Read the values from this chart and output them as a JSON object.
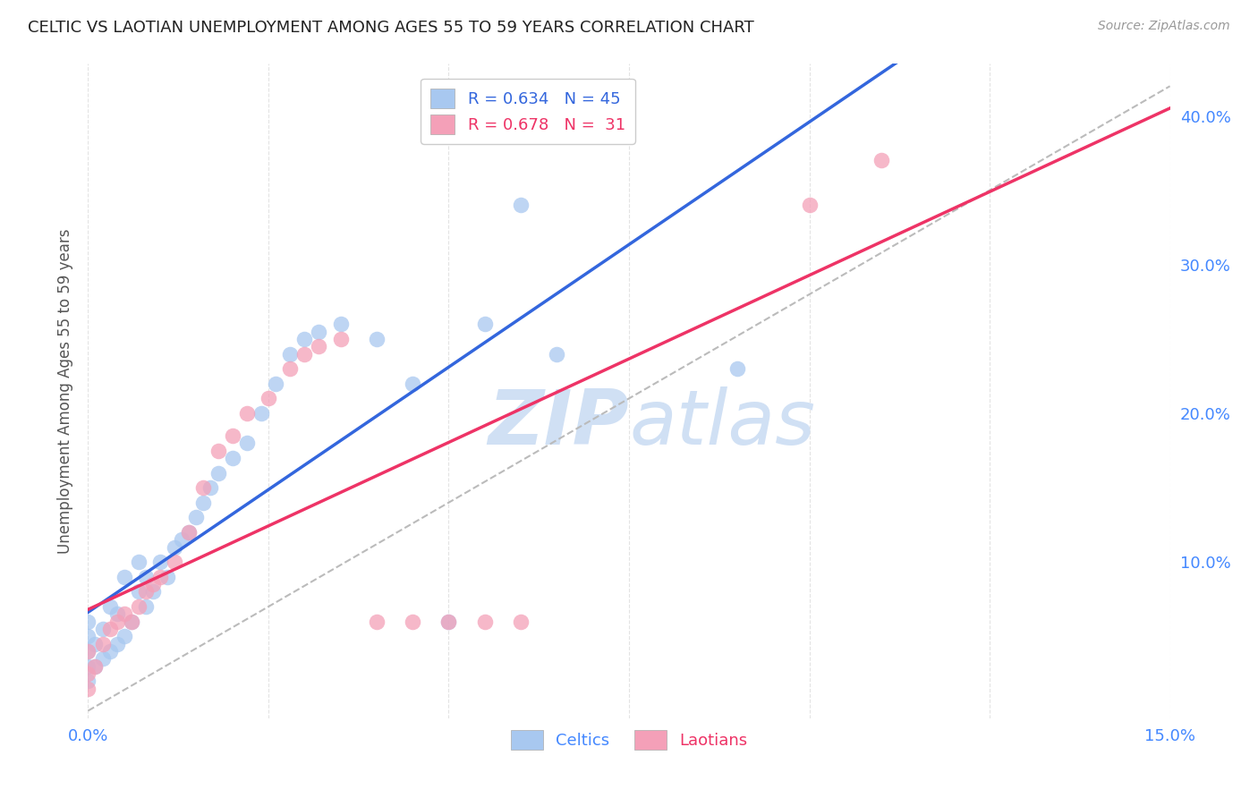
{
  "title": "CELTIC VS LAOTIAN UNEMPLOYMENT AMONG AGES 55 TO 59 YEARS CORRELATION CHART",
  "source": "Source: ZipAtlas.com",
  "ylabel": "Unemployment Among Ages 55 to 59 years",
  "xlim": [
    0.0,
    0.15
  ],
  "ylim": [
    -0.005,
    0.435
  ],
  "xticks": [
    0.0,
    0.025,
    0.05,
    0.075,
    0.1,
    0.125,
    0.15
  ],
  "xticklabels": [
    "0.0%",
    "",
    "",
    "",
    "",
    "",
    "15.0%"
  ],
  "yticks_right": [
    0.1,
    0.2,
    0.3,
    0.4
  ],
  "ytick_right_labels": [
    "10.0%",
    "20.0%",
    "30.0%",
    "40.0%"
  ],
  "celtics_R": 0.634,
  "celtics_N": 45,
  "laotians_R": 0.678,
  "laotians_N": 31,
  "celtics_color": "#A8C8F0",
  "laotians_color": "#F4A0B8",
  "celtics_line_color": "#3366DD",
  "laotians_line_color": "#EE3366",
  "diagonal_line_color": "#BBBBBB",
  "celtics_x": [
    0.0,
    0.0,
    0.0,
    0.0,
    0.0,
    0.001,
    0.001,
    0.002,
    0.002,
    0.003,
    0.003,
    0.004,
    0.004,
    0.005,
    0.005,
    0.006,
    0.007,
    0.007,
    0.008,
    0.008,
    0.009,
    0.01,
    0.011,
    0.012,
    0.013,
    0.014,
    0.015,
    0.016,
    0.017,
    0.018,
    0.02,
    0.022,
    0.024,
    0.026,
    0.028,
    0.03,
    0.032,
    0.035,
    0.04,
    0.045,
    0.05,
    0.055,
    0.06,
    0.065,
    0.09
  ],
  "celtics_y": [
    0.02,
    0.03,
    0.04,
    0.05,
    0.06,
    0.03,
    0.045,
    0.035,
    0.055,
    0.04,
    0.07,
    0.045,
    0.065,
    0.05,
    0.09,
    0.06,
    0.08,
    0.1,
    0.07,
    0.09,
    0.08,
    0.1,
    0.09,
    0.11,
    0.115,
    0.12,
    0.13,
    0.14,
    0.15,
    0.16,
    0.17,
    0.18,
    0.2,
    0.22,
    0.24,
    0.25,
    0.255,
    0.26,
    0.25,
    0.22,
    0.06,
    0.26,
    0.34,
    0.24,
    0.23
  ],
  "laotians_x": [
    0.0,
    0.0,
    0.0,
    0.001,
    0.002,
    0.003,
    0.004,
    0.005,
    0.006,
    0.007,
    0.008,
    0.009,
    0.01,
    0.012,
    0.014,
    0.016,
    0.018,
    0.02,
    0.022,
    0.025,
    0.028,
    0.03,
    0.032,
    0.035,
    0.04,
    0.045,
    0.05,
    0.055,
    0.06,
    0.1,
    0.11
  ],
  "laotians_y": [
    0.015,
    0.025,
    0.04,
    0.03,
    0.045,
    0.055,
    0.06,
    0.065,
    0.06,
    0.07,
    0.08,
    0.085,
    0.09,
    0.1,
    0.12,
    0.15,
    0.175,
    0.185,
    0.2,
    0.21,
    0.23,
    0.24,
    0.245,
    0.25,
    0.06,
    0.06,
    0.06,
    0.06,
    0.06,
    0.34,
    0.37
  ],
  "background_color": "#FFFFFF",
  "grid_color": "#DDDDDD",
  "title_color": "#222222",
  "axis_label_color": "#555555",
  "right_tick_color": "#4488FF",
  "bottom_tick_color": "#4488FF",
  "watermark_color": "#D0E0F4"
}
